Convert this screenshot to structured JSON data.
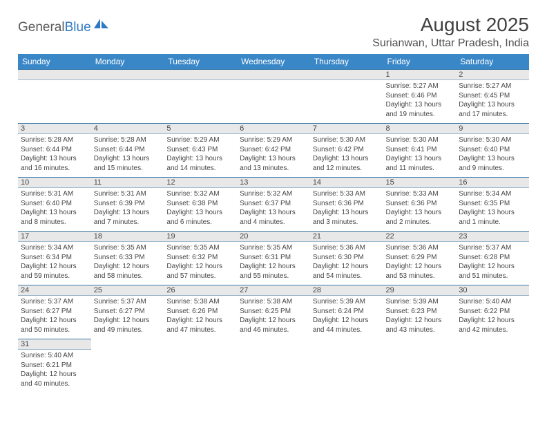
{
  "logo": {
    "part1": "General",
    "part2": "Blue"
  },
  "title": "August 2025",
  "location": "Surianwan, Uttar Pradesh, India",
  "colors": {
    "header_bg": "#3a87c8",
    "header_text": "#ffffff",
    "daynum_bg": "#e8e8e8",
    "border": "#3a78a8",
    "logo_blue": "#2f79c2"
  },
  "day_headers": [
    "Sunday",
    "Monday",
    "Tuesday",
    "Wednesday",
    "Thursday",
    "Friday",
    "Saturday"
  ],
  "weeks": [
    [
      null,
      null,
      null,
      null,
      null,
      {
        "n": "1",
        "sr": "Sunrise: 5:27 AM",
        "ss": "Sunset: 6:46 PM",
        "d1": "Daylight: 13 hours",
        "d2": "and 19 minutes."
      },
      {
        "n": "2",
        "sr": "Sunrise: 5:27 AM",
        "ss": "Sunset: 6:45 PM",
        "d1": "Daylight: 13 hours",
        "d2": "and 17 minutes."
      }
    ],
    [
      {
        "n": "3",
        "sr": "Sunrise: 5:28 AM",
        "ss": "Sunset: 6:44 PM",
        "d1": "Daylight: 13 hours",
        "d2": "and 16 minutes."
      },
      {
        "n": "4",
        "sr": "Sunrise: 5:28 AM",
        "ss": "Sunset: 6:44 PM",
        "d1": "Daylight: 13 hours",
        "d2": "and 15 minutes."
      },
      {
        "n": "5",
        "sr": "Sunrise: 5:29 AM",
        "ss": "Sunset: 6:43 PM",
        "d1": "Daylight: 13 hours",
        "d2": "and 14 minutes."
      },
      {
        "n": "6",
        "sr": "Sunrise: 5:29 AM",
        "ss": "Sunset: 6:42 PM",
        "d1": "Daylight: 13 hours",
        "d2": "and 13 minutes."
      },
      {
        "n": "7",
        "sr": "Sunrise: 5:30 AM",
        "ss": "Sunset: 6:42 PM",
        "d1": "Daylight: 13 hours",
        "d2": "and 12 minutes."
      },
      {
        "n": "8",
        "sr": "Sunrise: 5:30 AM",
        "ss": "Sunset: 6:41 PM",
        "d1": "Daylight: 13 hours",
        "d2": "and 11 minutes."
      },
      {
        "n": "9",
        "sr": "Sunrise: 5:30 AM",
        "ss": "Sunset: 6:40 PM",
        "d1": "Daylight: 13 hours",
        "d2": "and 9 minutes."
      }
    ],
    [
      {
        "n": "10",
        "sr": "Sunrise: 5:31 AM",
        "ss": "Sunset: 6:40 PM",
        "d1": "Daylight: 13 hours",
        "d2": "and 8 minutes."
      },
      {
        "n": "11",
        "sr": "Sunrise: 5:31 AM",
        "ss": "Sunset: 6:39 PM",
        "d1": "Daylight: 13 hours",
        "d2": "and 7 minutes."
      },
      {
        "n": "12",
        "sr": "Sunrise: 5:32 AM",
        "ss": "Sunset: 6:38 PM",
        "d1": "Daylight: 13 hours",
        "d2": "and 6 minutes."
      },
      {
        "n": "13",
        "sr": "Sunrise: 5:32 AM",
        "ss": "Sunset: 6:37 PM",
        "d1": "Daylight: 13 hours",
        "d2": "and 4 minutes."
      },
      {
        "n": "14",
        "sr": "Sunrise: 5:33 AM",
        "ss": "Sunset: 6:36 PM",
        "d1": "Daylight: 13 hours",
        "d2": "and 3 minutes."
      },
      {
        "n": "15",
        "sr": "Sunrise: 5:33 AM",
        "ss": "Sunset: 6:36 PM",
        "d1": "Daylight: 13 hours",
        "d2": "and 2 minutes."
      },
      {
        "n": "16",
        "sr": "Sunrise: 5:34 AM",
        "ss": "Sunset: 6:35 PM",
        "d1": "Daylight: 13 hours",
        "d2": "and 1 minute."
      }
    ],
    [
      {
        "n": "17",
        "sr": "Sunrise: 5:34 AM",
        "ss": "Sunset: 6:34 PM",
        "d1": "Daylight: 12 hours",
        "d2": "and 59 minutes."
      },
      {
        "n": "18",
        "sr": "Sunrise: 5:35 AM",
        "ss": "Sunset: 6:33 PM",
        "d1": "Daylight: 12 hours",
        "d2": "and 58 minutes."
      },
      {
        "n": "19",
        "sr": "Sunrise: 5:35 AM",
        "ss": "Sunset: 6:32 PM",
        "d1": "Daylight: 12 hours",
        "d2": "and 57 minutes."
      },
      {
        "n": "20",
        "sr": "Sunrise: 5:35 AM",
        "ss": "Sunset: 6:31 PM",
        "d1": "Daylight: 12 hours",
        "d2": "and 55 minutes."
      },
      {
        "n": "21",
        "sr": "Sunrise: 5:36 AM",
        "ss": "Sunset: 6:30 PM",
        "d1": "Daylight: 12 hours",
        "d2": "and 54 minutes."
      },
      {
        "n": "22",
        "sr": "Sunrise: 5:36 AM",
        "ss": "Sunset: 6:29 PM",
        "d1": "Daylight: 12 hours",
        "d2": "and 53 minutes."
      },
      {
        "n": "23",
        "sr": "Sunrise: 5:37 AM",
        "ss": "Sunset: 6:28 PM",
        "d1": "Daylight: 12 hours",
        "d2": "and 51 minutes."
      }
    ],
    [
      {
        "n": "24",
        "sr": "Sunrise: 5:37 AM",
        "ss": "Sunset: 6:27 PM",
        "d1": "Daylight: 12 hours",
        "d2": "and 50 minutes."
      },
      {
        "n": "25",
        "sr": "Sunrise: 5:37 AM",
        "ss": "Sunset: 6:27 PM",
        "d1": "Daylight: 12 hours",
        "d2": "and 49 minutes."
      },
      {
        "n": "26",
        "sr": "Sunrise: 5:38 AM",
        "ss": "Sunset: 6:26 PM",
        "d1": "Daylight: 12 hours",
        "d2": "and 47 minutes."
      },
      {
        "n": "27",
        "sr": "Sunrise: 5:38 AM",
        "ss": "Sunset: 6:25 PM",
        "d1": "Daylight: 12 hours",
        "d2": "and 46 minutes."
      },
      {
        "n": "28",
        "sr": "Sunrise: 5:39 AM",
        "ss": "Sunset: 6:24 PM",
        "d1": "Daylight: 12 hours",
        "d2": "and 44 minutes."
      },
      {
        "n": "29",
        "sr": "Sunrise: 5:39 AM",
        "ss": "Sunset: 6:23 PM",
        "d1": "Daylight: 12 hours",
        "d2": "and 43 minutes."
      },
      {
        "n": "30",
        "sr": "Sunrise: 5:40 AM",
        "ss": "Sunset: 6:22 PM",
        "d1": "Daylight: 12 hours",
        "d2": "and 42 minutes."
      }
    ],
    [
      {
        "n": "31",
        "sr": "Sunrise: 5:40 AM",
        "ss": "Sunset: 6:21 PM",
        "d1": "Daylight: 12 hours",
        "d2": "and 40 minutes."
      },
      null,
      null,
      null,
      null,
      null,
      null
    ]
  ]
}
